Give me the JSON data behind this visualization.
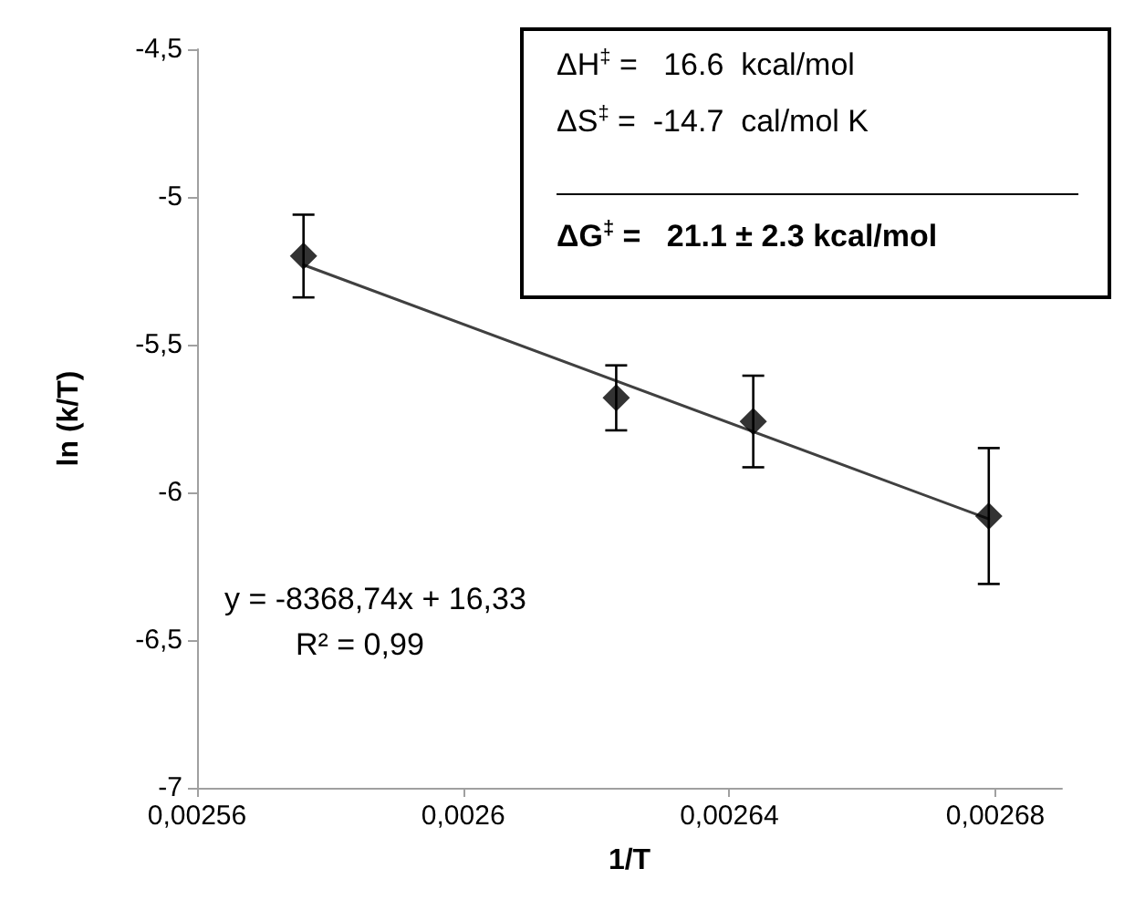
{
  "chart_data": {
    "type": "scatter",
    "xlabel": "1/T",
    "ylabel": "ln (k/T)",
    "xlim": [
      0.00256,
      0.00269
    ],
    "ylim": [
      -7,
      -4.5
    ],
    "xticks": [
      {
        "value": 0.00256,
        "label": "0,00256"
      },
      {
        "value": 0.0026,
        "label": "0,0026"
      },
      {
        "value": 0.00264,
        "label": "0,00264"
      },
      {
        "value": 0.00268,
        "label": "0,00268"
      }
    ],
    "yticks": [
      -7,
      {
        "value": -6.5,
        "label": "-6,5"
      },
      -6,
      {
        "value": -5.5,
        "label": "-5,5"
      },
      -5,
      {
        "value": -4.5,
        "label": "-4,5"
      }
    ],
    "marker": "diamond",
    "grid": false,
    "annotations": [
      "ΔH$^{‡}$ =   16.6  kcal/mol",
      "ΔS$^{‡}$ =  -14.7  cal/mol K",
      "ΔG$^{‡}$ =   21.1 ± 2.3 kcal/mol",
      "y = -8368,74x + 16,33",
      "R² = 0,99"
    ],
    "series": [
      {
        "color": "#000000",
        "x": [
          0.002576,
          0.002623,
          0.0026436,
          0.002679
        ],
        "values": [
          -5.2,
          -5.68,
          -5.76,
          -6.08
        ],
        "errors": [
          0.14,
          0.11,
          0.155,
          0.23
        ]
      },
      {
        "type": "line",
        "color": "#404040",
        "marker": "none",
        "x": [
          0.002576,
          0.002679
        ],
        "values": [
          -5.23,
          -6.09
        ]
      }
    ]
  }
}
